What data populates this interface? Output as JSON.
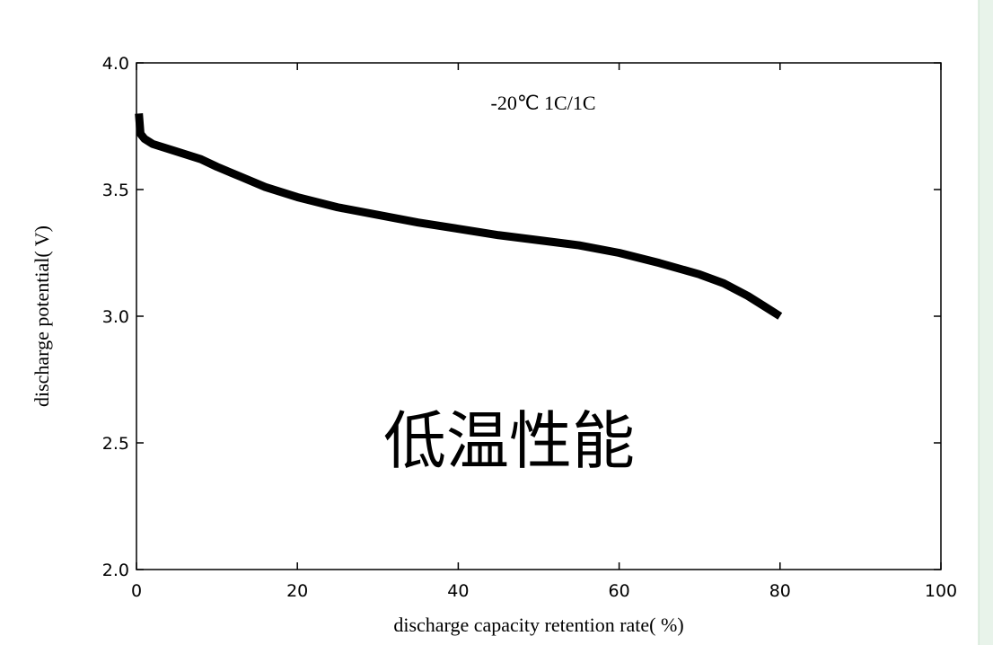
{
  "chart_data": {
    "type": "line",
    "annotation": "-20℃   1C/1C",
    "watermark": "低温性能",
    "xlabel": "discharge capacity retention rate(  %)",
    "ylabel": "discharge potential(  V)",
    "x": [
      0.3,
      0.5,
      1,
      2,
      5,
      8,
      10,
      13,
      16,
      20,
      25,
      30,
      35,
      40,
      45,
      50,
      55,
      60,
      65,
      70,
      73,
      76,
      78,
      80
    ],
    "values": [
      3.8,
      3.72,
      3.7,
      3.68,
      3.65,
      3.62,
      3.59,
      3.55,
      3.51,
      3.47,
      3.43,
      3.4,
      3.37,
      3.345,
      3.32,
      3.3,
      3.28,
      3.25,
      3.21,
      3.165,
      3.13,
      3.08,
      3.04,
      3.0
    ],
    "color": "#000000",
    "xlim": [
      0,
      100
    ],
    "xticks": [
      0,
      20,
      40,
      60,
      80,
      100
    ],
    "ylim": [
      2,
      4
    ],
    "yticks": [
      {
        "value": 2,
        "label": "2.0"
      },
      2.5,
      {
        "value": 3,
        "label": "3.0"
      },
      3.5,
      {
        "value": 4,
        "label": "4.0"
      }
    ]
  }
}
